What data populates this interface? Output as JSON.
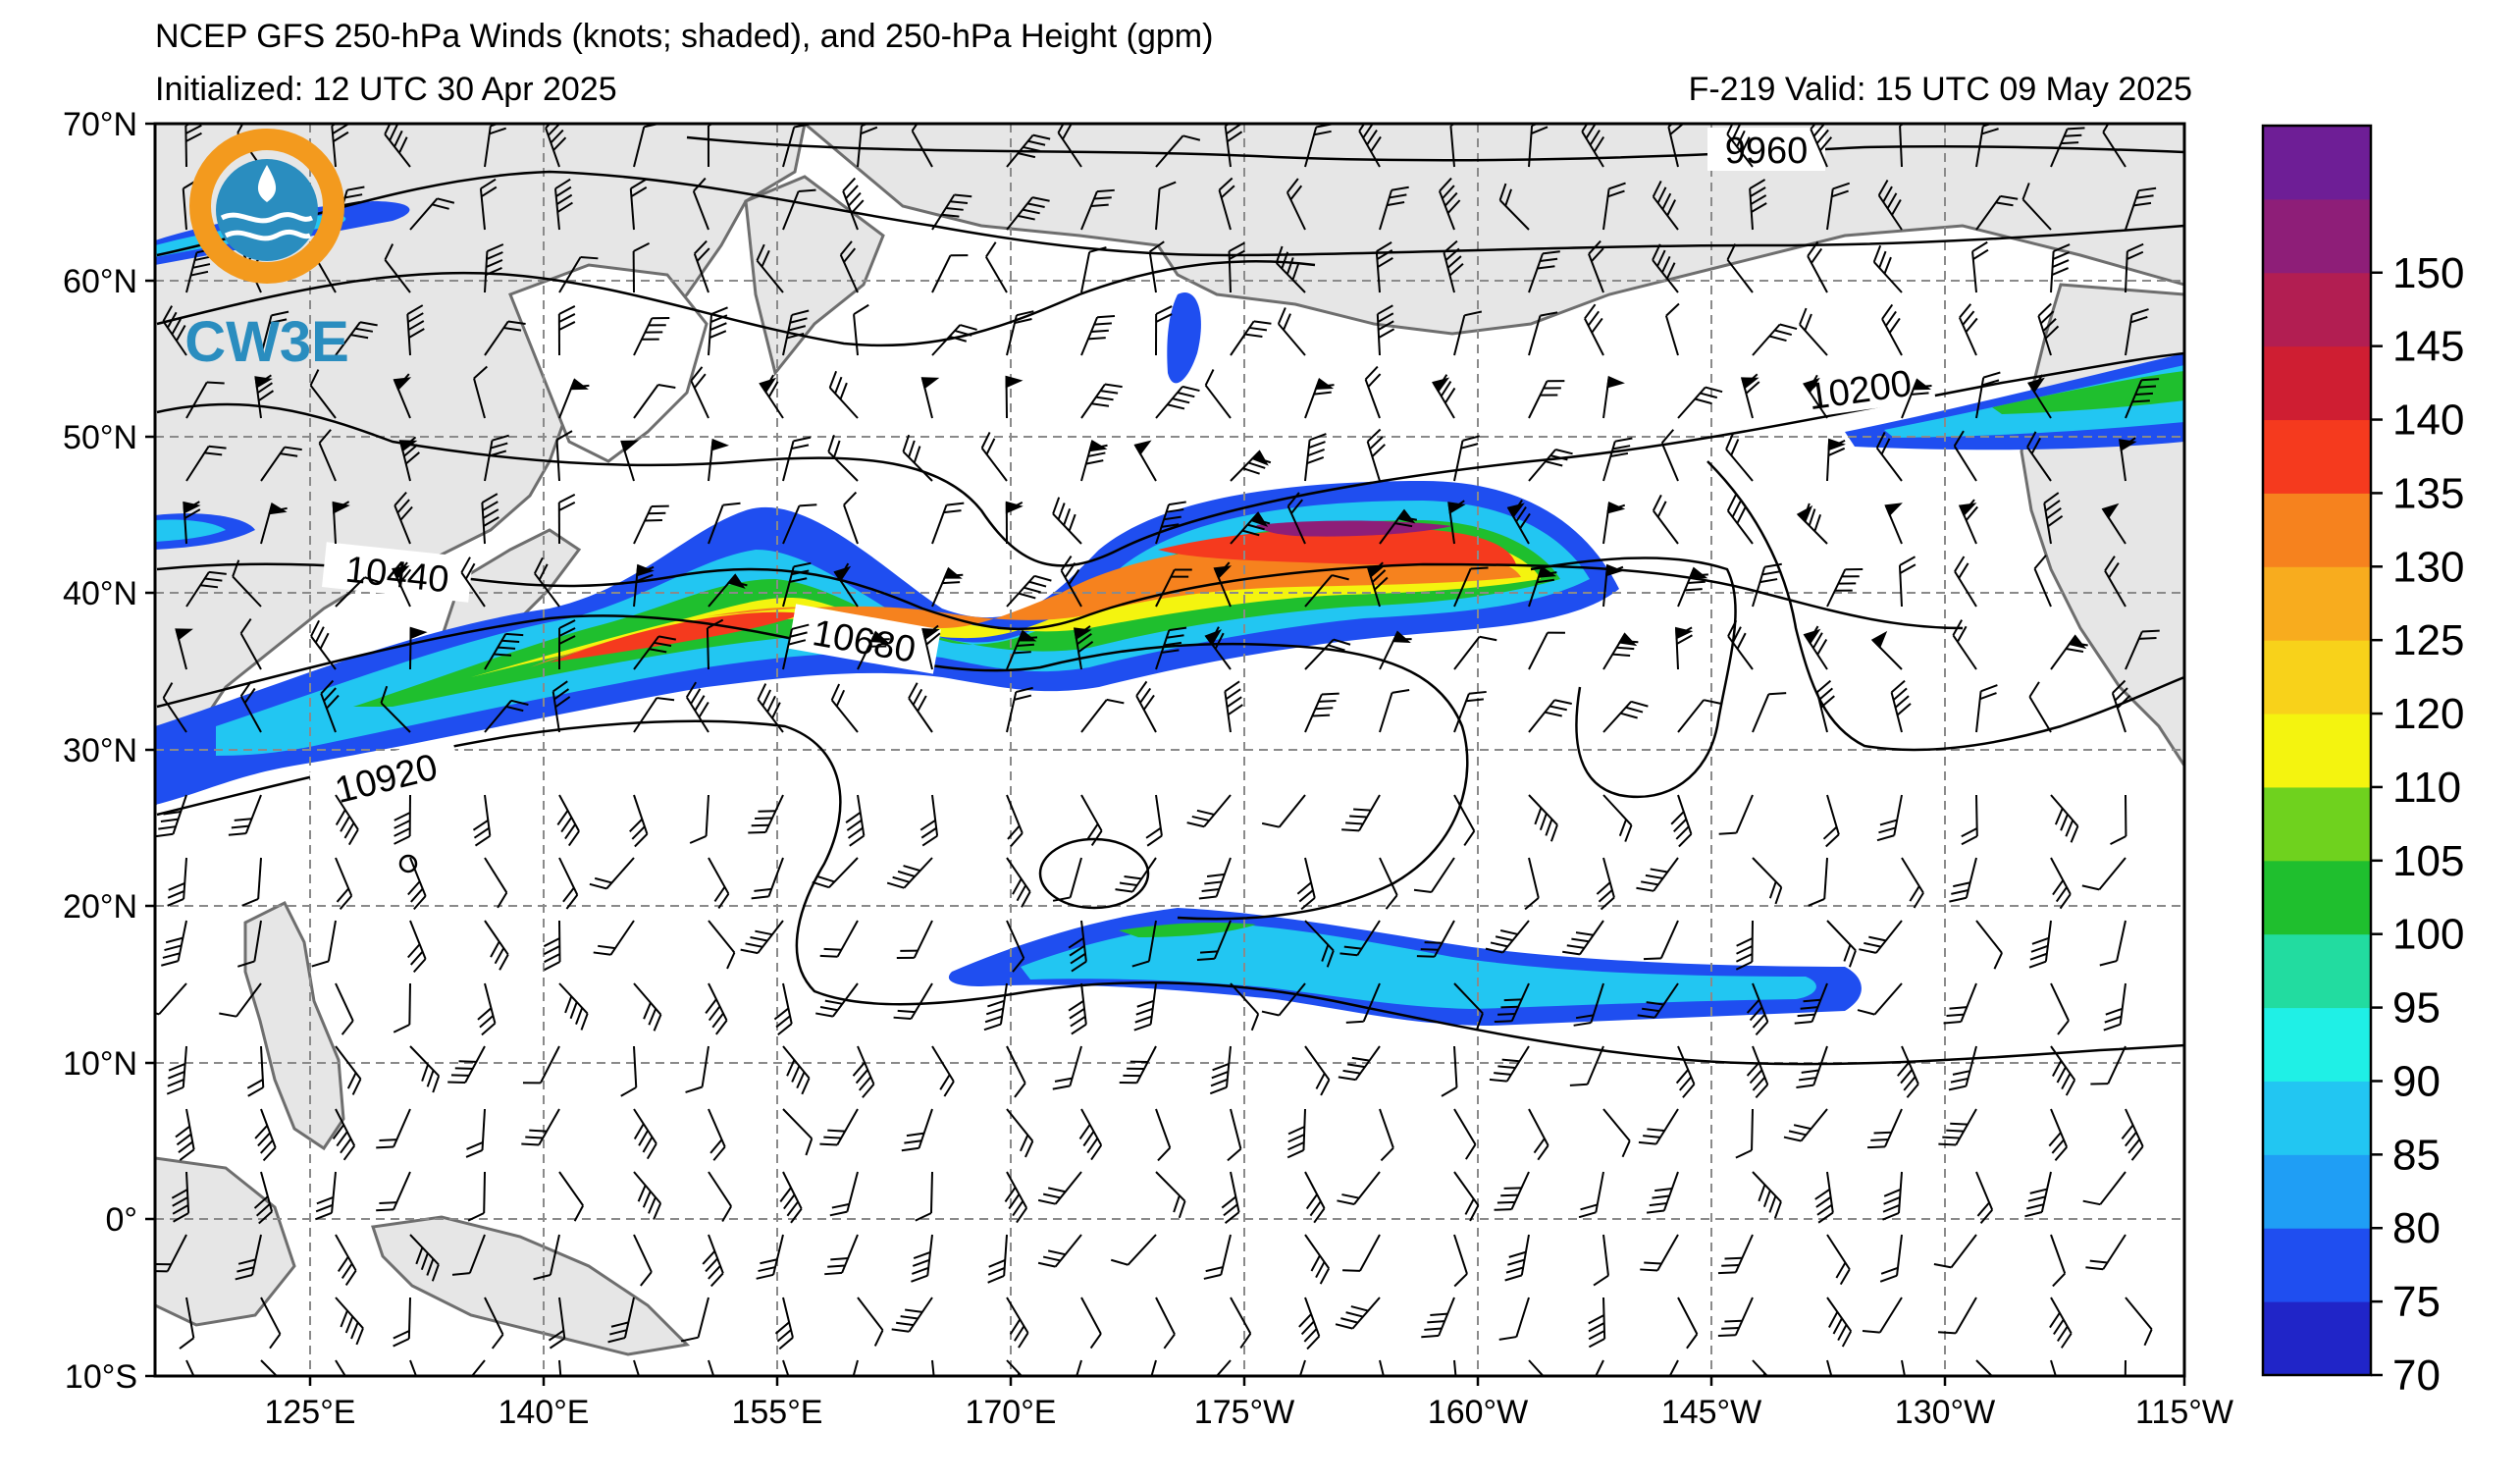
{
  "header": {
    "title": "NCEP GFS 250-hPa Winds (knots; shaded), and 250-hPa Height (gpm)",
    "initialized": "Initialized: 12 UTC 30 Apr 2025",
    "valid": "F-219  Valid: 15 UTC 09 May 2025"
  },
  "logo": {
    "text": "CW3E"
  },
  "axes": {
    "lat_labels": [
      "70°N",
      "60°N",
      "50°N",
      "40°N",
      "30°N",
      "20°N",
      "10°N",
      "0°",
      "10°S"
    ],
    "lon_labels": [
      "125°E",
      "140°E",
      "155°E",
      "170°E",
      "175°W",
      "160°W",
      "145°W",
      "130°W",
      "115°W"
    ]
  },
  "contours": {
    "labels": [
      "9960",
      "10200",
      "10440",
      "10680",
      "10920"
    ]
  },
  "colorbar": {
    "tick_labels": [
      "70",
      "75",
      "80",
      "85",
      "90",
      "95",
      "100",
      "105",
      "110",
      "120",
      "125",
      "130",
      "135",
      "140",
      "145",
      "150"
    ],
    "colors": [
      "#2025c8",
      "#1f4ef0",
      "#1f9ef5",
      "#22c6f2",
      "#1ff0e6",
      "#22dca0",
      "#1fbf2e",
      "#6fd21e",
      "#f4f40f",
      "#f8d21a",
      "#f8ac1e",
      "#f6821e",
      "#f53a1e",
      "#cf1e32",
      "#b21e52",
      "#8e1e78",
      "#6e1e96"
    ]
  },
  "colors": {
    "land": "#e6e6e6",
    "coast": "#6e6e6e",
    "ocean": "#ffffff",
    "logo_orange": "#f39a1e",
    "logo_blue": "#2a8dbf"
  }
}
